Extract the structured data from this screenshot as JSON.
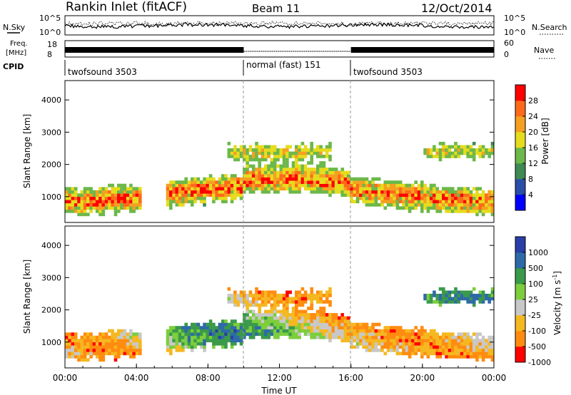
{
  "header": {
    "station": "Rankin Inlet (fitACF)",
    "beam": "Beam 11",
    "date": "12/Oct/2014"
  },
  "noise_panel": {
    "left_label": "N.Sky",
    "right_label": "N.Search",
    "ticks": [
      "10^5",
      "10^0"
    ]
  },
  "freq_panel": {
    "left_label": "Freq.",
    "unit": "[MHz]",
    "left_ticks": [
      "18",
      "8"
    ],
    "right_label": "Nave",
    "right_ticks": [
      "60",
      "0"
    ]
  },
  "cpid": {
    "label": "CPID",
    "segments": [
      {
        "name": "twofsound 3503",
        "start_h": 0,
        "end_h": 10
      },
      {
        "name": "normal (fast) 151",
        "start_h": 10,
        "end_h": 16
      },
      {
        "name": "twofsound 3503",
        "start_h": 16,
        "end_h": 24
      }
    ]
  },
  "colors": {
    "power": [
      "#0000ff",
      "#2a4ea8",
      "#3e8a52",
      "#6cb84a",
      "#e6dc1e",
      "#f5a020",
      "#ff6a1a",
      "#ff0000"
    ],
    "velocity": [
      "#2a3ea8",
      "#2e6aa8",
      "#3a9a4a",
      "#7cce3c",
      "#c8c8c8",
      "#f5b820",
      "#ff8c10",
      "#ff0000"
    ]
  },
  "chart_data": [
    {
      "type": "heatmap",
      "name": "power",
      "ylabel": "Slant Range [km]",
      "y_ticks": [
        "1000",
        "2000",
        "3000",
        "4000"
      ],
      "ylim": [
        200,
        4600
      ],
      "xlim": [
        0,
        24
      ],
      "colorbar_label": "Power [dB]",
      "colorbar_ticks": [
        "4",
        "8",
        "12",
        "16",
        "20",
        "24",
        "28"
      ],
      "colorbar_range": [
        0,
        32
      ]
    },
    {
      "type": "heatmap",
      "name": "velocity",
      "ylabel": "Slant Range [km]",
      "y_ticks": [
        "1000",
        "2000",
        "3000",
        "4000"
      ],
      "ylim": [
        200,
        4600
      ],
      "xlim": [
        0,
        24
      ],
      "colorbar_label": "Velocity [m s",
      "colorbar_unit_sup": "-1",
      "colorbar_unit_close": "]",
      "colorbar_ticks": [
        "1000",
        "500",
        "100",
        "25",
        "-25",
        "-100",
        "-500",
        "-1000"
      ]
    }
  ],
  "x_axis": {
    "ticks": [
      "00:00",
      "04:00",
      "08:00",
      "12:00",
      "16:00",
      "20:00",
      "00:00"
    ],
    "label": "Time UT"
  }
}
